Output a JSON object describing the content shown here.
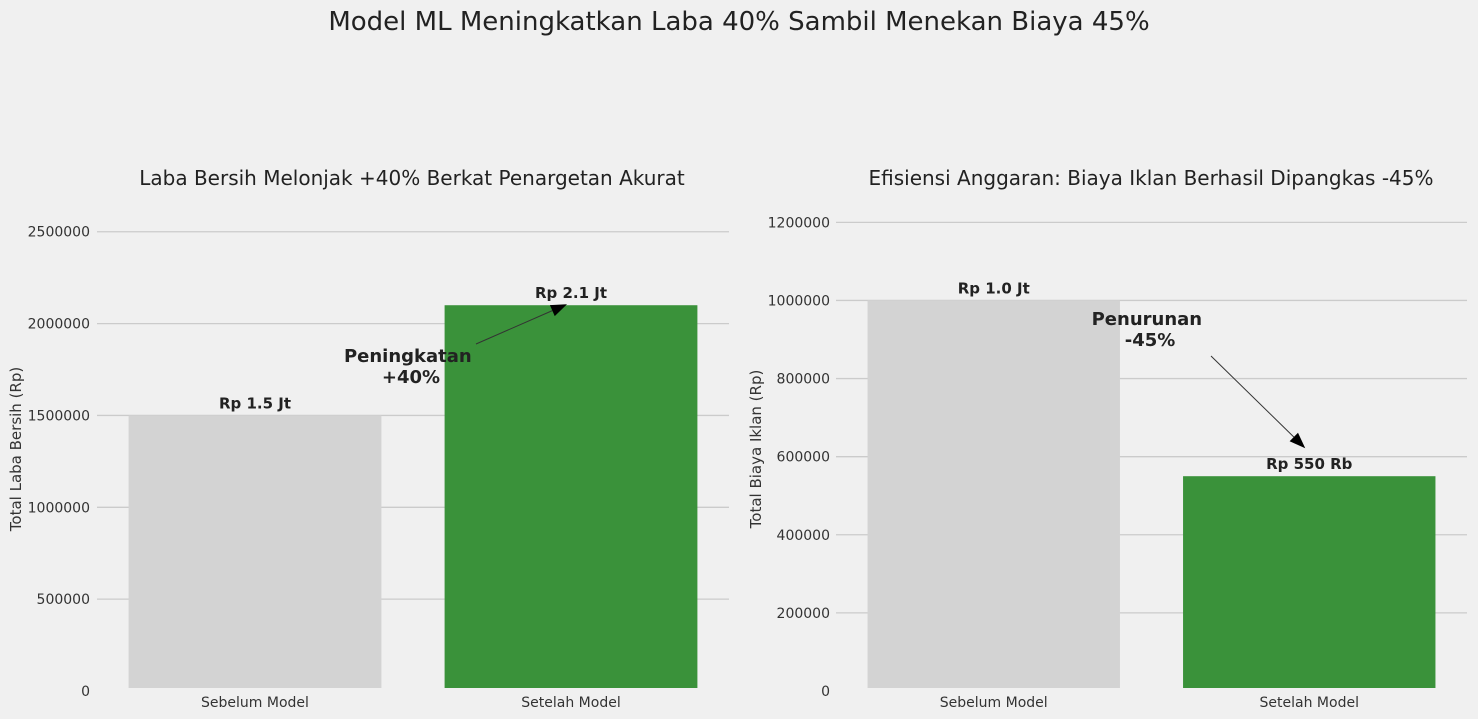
{
  "figure_title": "Model ML Meningkatkan Laba 40% Sambil Menekan Biaya 45%",
  "colors": {
    "background": "#f0f0f0",
    "before_bar": "#d3d3d3",
    "after_bar": "#3a923a",
    "grid": "#cbcbcb"
  },
  "chart_data": [
    {
      "type": "bar",
      "title": "Laba Bersih Melonjak +40% Berkat Penargetan Akurat",
      "xlabel": "",
      "ylabel": "Total Laba Bersih (Rp)",
      "categories": [
        "Sebelum Model",
        "Setelah Model"
      ],
      "values": [
        1500000,
        2100000
      ],
      "bar_labels": [
        "Rp 1.5 Jt",
        "Rp 2.1 Jt"
      ],
      "yticks": [
        0,
        500000,
        1000000,
        1500000,
        2000000,
        2500000
      ],
      "ylim": [
        0,
        2700000
      ],
      "grid": "horizontal",
      "annotation": {
        "lines": [
          "Peningkatan",
          "+40%"
        ],
        "points_to": "Setelah Model"
      }
    },
    {
      "type": "bar",
      "title": "Efisiensi Anggaran: Biaya Iklan Berhasil Dipangkas -45%",
      "xlabel": "",
      "ylabel": "Total Biaya Iklan (Rp)",
      "categories": [
        "Sebelum Model",
        "Setelah Model"
      ],
      "values": [
        1000000,
        550000
      ],
      "bar_labels": [
        "Rp 1.0 Jt",
        "Rp 550 Rb"
      ],
      "yticks": [
        0,
        200000,
        400000,
        600000,
        800000,
        1000000,
        1200000
      ],
      "ylim": [
        0,
        1270000
      ],
      "grid": "horizontal",
      "annotation": {
        "lines": [
          "Penurunan",
          "-45%"
        ],
        "points_to": "Setelah Model"
      }
    }
  ]
}
